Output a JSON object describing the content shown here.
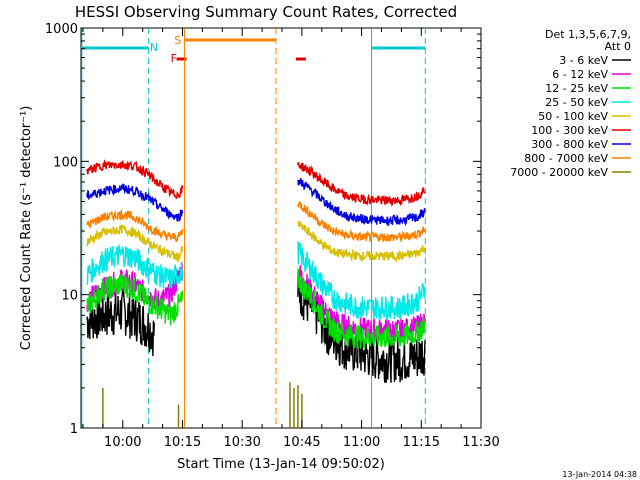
{
  "chart_data": {
    "type": "line",
    "title": "HESSI Observing Summary Count Rates, Corrected",
    "xlabel": "Start Time (13-Jan-14 09:50:02)",
    "ylabel": "Corrected Count Rate (s⁻¹ detector⁻¹)",
    "x_ticks": [
      "10:00",
      "10:15",
      "10:30",
      "10:45",
      "11:00",
      "11:15",
      "11:30"
    ],
    "x_tick_minutes": [
      0,
      15,
      30,
      45,
      60,
      75,
      90
    ],
    "x_range_minutes": [
      -10.5,
      90
    ],
    "y_scale": "log",
    "y_range": [
      1,
      1000
    ],
    "y_ticks": [
      "1",
      "10",
      "100",
      "1000"
    ],
    "y_tick_values": [
      1,
      10,
      100,
      1000
    ],
    "timestamp": "13-Jan-2014 04:38",
    "legend": {
      "header": [
        "Det 1,3,5,6,7,9,",
        "Att 0"
      ],
      "entries": [
        {
          "label": "3 - 6 keV",
          "color": "#000000"
        },
        {
          "label": "6 - 12 keV",
          "color": "#e000e0"
        },
        {
          "label": "12 - 25 keV",
          "color": "#00e000"
        },
        {
          "label": "25 - 50 keV",
          "color": "#00e8e8"
        },
        {
          "label": "50 - 100 keV",
          "color": "#d8c000"
        },
        {
          "label": "100 - 300 keV",
          "color": "#e00000"
        },
        {
          "label": "300 - 800 keV",
          "color": "#0000e0"
        },
        {
          "label": "800 - 7000 keV",
          "color": "#ff8000"
        },
        {
          "label": "7000 - 20000 keV",
          "color": "#808000"
        }
      ]
    },
    "flags": [
      {
        "label": "N",
        "color": "#00c8c8"
      },
      {
        "label": "S",
        "color": "#ff8000"
      },
      {
        "label": "F",
        "color": "#e00000"
      }
    ],
    "series": [
      {
        "name": "3 - 6 keV",
        "color": "#000000",
        "points": [
          [
            -9,
            6.5
          ],
          [
            -5,
            7
          ],
          [
            0,
            7.5
          ],
          [
            4,
            6.5
          ],
          [
            7,
            5.5
          ],
          [
            8,
            5
          ],
          [
            44,
            11
          ],
          [
            46,
            9
          ],
          [
            49,
            7
          ],
          [
            52,
            5
          ],
          [
            55,
            4.2
          ],
          [
            58,
            3.8
          ],
          [
            62,
            3.5
          ],
          [
            66,
            3.3
          ],
          [
            70,
            3.3
          ],
          [
            74,
            3.4
          ],
          [
            76,
            3.8
          ]
        ]
      },
      {
        "name": "6 - 12 keV",
        "color": "#e000e0",
        "points": [
          [
            -9,
            9
          ],
          [
            -5,
            11
          ],
          [
            0,
            13
          ],
          [
            3,
            12
          ],
          [
            6,
            10
          ],
          [
            9,
            9
          ],
          [
            12,
            10
          ],
          [
            15,
            16
          ],
          [
            44,
            15
          ],
          [
            47,
            11
          ],
          [
            50,
            8
          ],
          [
            53,
            6.5
          ],
          [
            56,
            5.8
          ],
          [
            60,
            5.5
          ],
          [
            65,
            5.4
          ],
          [
            70,
            5.4
          ],
          [
            74,
            5.7
          ],
          [
            76,
            6.5
          ]
        ]
      },
      {
        "name": "12 - 25 keV",
        "color": "#00e000",
        "points": [
          [
            -9,
            8
          ],
          [
            -5,
            11
          ],
          [
            0,
            12
          ],
          [
            3,
            11
          ],
          [
            6,
            9
          ],
          [
            9,
            8
          ],
          [
            12,
            7
          ],
          [
            13.5,
            8
          ],
          [
            15,
            9
          ],
          [
            44,
            13
          ],
          [
            47,
            10
          ],
          [
            50,
            7
          ],
          [
            53,
            5.5
          ],
          [
            56,
            5
          ],
          [
            60,
            4.8
          ],
          [
            65,
            4.8
          ],
          [
            70,
            4.8
          ],
          [
            74,
            5.2
          ],
          [
            76,
            6
          ]
        ]
      },
      {
        "name": "25 - 50 keV",
        "color": "#00e8e8",
        "points": [
          [
            -9,
            14
          ],
          [
            -5,
            18
          ],
          [
            0,
            20
          ],
          [
            3,
            19
          ],
          [
            6,
            16
          ],
          [
            9,
            14
          ],
          [
            12,
            13
          ],
          [
            15,
            15
          ],
          [
            44,
            21
          ],
          [
            47,
            16
          ],
          [
            50,
            12
          ],
          [
            53,
            9.5
          ],
          [
            56,
            8.5
          ],
          [
            60,
            8
          ],
          [
            65,
            8
          ],
          [
            70,
            8
          ],
          [
            74,
            9
          ],
          [
            76,
            11
          ]
        ]
      },
      {
        "name": "50 - 100 keV",
        "color": "#d8c000",
        "points": [
          [
            -9,
            25
          ],
          [
            -5,
            29
          ],
          [
            0,
            31
          ],
          [
            3,
            29
          ],
          [
            6,
            25
          ],
          [
            9,
            22
          ],
          [
            12,
            20
          ],
          [
            14,
            19
          ],
          [
            15,
            22
          ],
          [
            44,
            34
          ],
          [
            47,
            29
          ],
          [
            50,
            24
          ],
          [
            53,
            21
          ],
          [
            56,
            20
          ],
          [
            60,
            19.5
          ],
          [
            65,
            19.5
          ],
          [
            70,
            19.5
          ],
          [
            74,
            20.5
          ],
          [
            76,
            23
          ]
        ]
      },
      {
        "name": "800 - 7000 keV",
        "color": "#ff8000",
        "points": [
          [
            -9,
            33
          ],
          [
            -5,
            38
          ],
          [
            0,
            40
          ],
          [
            3,
            38
          ],
          [
            6,
            33
          ],
          [
            9,
            29
          ],
          [
            12,
            27
          ],
          [
            14,
            27
          ],
          [
            15,
            30
          ],
          [
            44,
            49
          ],
          [
            47,
            41
          ],
          [
            50,
            34
          ],
          [
            53,
            30
          ],
          [
            56,
            28
          ],
          [
            60,
            27
          ],
          [
            65,
            27
          ],
          [
            70,
            27
          ],
          [
            74,
            28.5
          ],
          [
            76,
            31
          ]
        ]
      },
      {
        "name": "300 - 800 keV",
        "color": "#0000e0",
        "points": [
          [
            -9,
            55
          ],
          [
            -5,
            60
          ],
          [
            0,
            63
          ],
          [
            3,
            60
          ],
          [
            6,
            54
          ],
          [
            9,
            46
          ],
          [
            12,
            40
          ],
          [
            14,
            38
          ],
          [
            15,
            42
          ],
          [
            44,
            72
          ],
          [
            47,
            62
          ],
          [
            50,
            52
          ],
          [
            53,
            44
          ],
          [
            56,
            39
          ],
          [
            60,
            37
          ],
          [
            65,
            36
          ],
          [
            70,
            36
          ],
          [
            74,
            38
          ],
          [
            76,
            42
          ]
        ]
      },
      {
        "name": "100 - 300 keV",
        "color": "#e00000",
        "points": [
          [
            -9,
            85
          ],
          [
            -5,
            93
          ],
          [
            0,
            95
          ],
          [
            3,
            92
          ],
          [
            6,
            82
          ],
          [
            9,
            68
          ],
          [
            12,
            58
          ],
          [
            14,
            56
          ],
          [
            15,
            62
          ],
          [
            44,
            95
          ],
          [
            47,
            85
          ],
          [
            50,
            72
          ],
          [
            53,
            62
          ],
          [
            56,
            55
          ],
          [
            60,
            52
          ],
          [
            65,
            51
          ],
          [
            70,
            51
          ],
          [
            74,
            55
          ],
          [
            76,
            62
          ]
        ]
      }
    ]
  }
}
